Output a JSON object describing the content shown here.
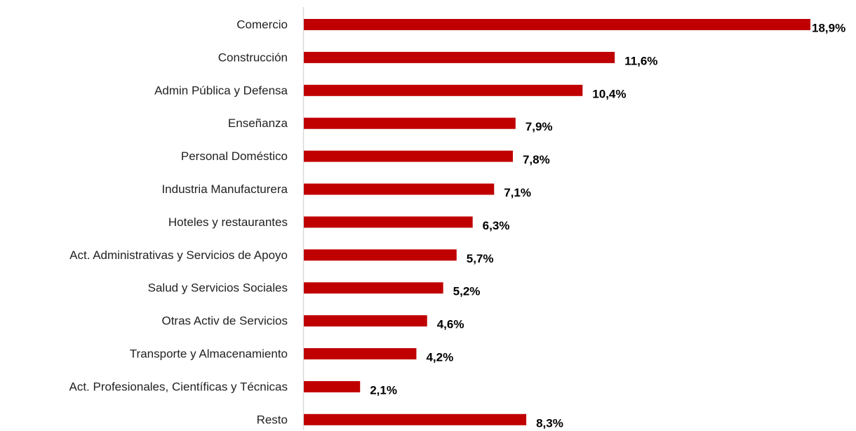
{
  "chart_data": {
    "type": "bar",
    "orientation": "horizontal",
    "categories": [
      "Comercio",
      "Construcción",
      "Admin Pública y Defensa",
      "Enseñanza",
      "Personal Doméstico",
      "Industria Manufacturera",
      "Hoteles y restaurantes",
      "Act. Administrativas y Servicios de Apoyo",
      "Salud y Servicios Sociales",
      "Otras Activ de Servicios",
      "Transporte y Almacenamiento",
      "Act. Profesionales, Científicas y Técnicas",
      "Resto"
    ],
    "values": [
      18.9,
      11.6,
      10.4,
      7.9,
      7.8,
      7.1,
      6.3,
      5.7,
      5.2,
      4.6,
      4.2,
      2.1,
      8.3
    ],
    "value_labels": [
      "18,9%",
      "11,6%",
      "10,4%",
      "7,9%",
      "7,8%",
      "7,1%",
      "6,3%",
      "5,7%",
      "5,2%",
      "4,6%",
      "4,2%",
      "2,1%",
      "8,3%"
    ],
    "color": "#c00000"
  }
}
